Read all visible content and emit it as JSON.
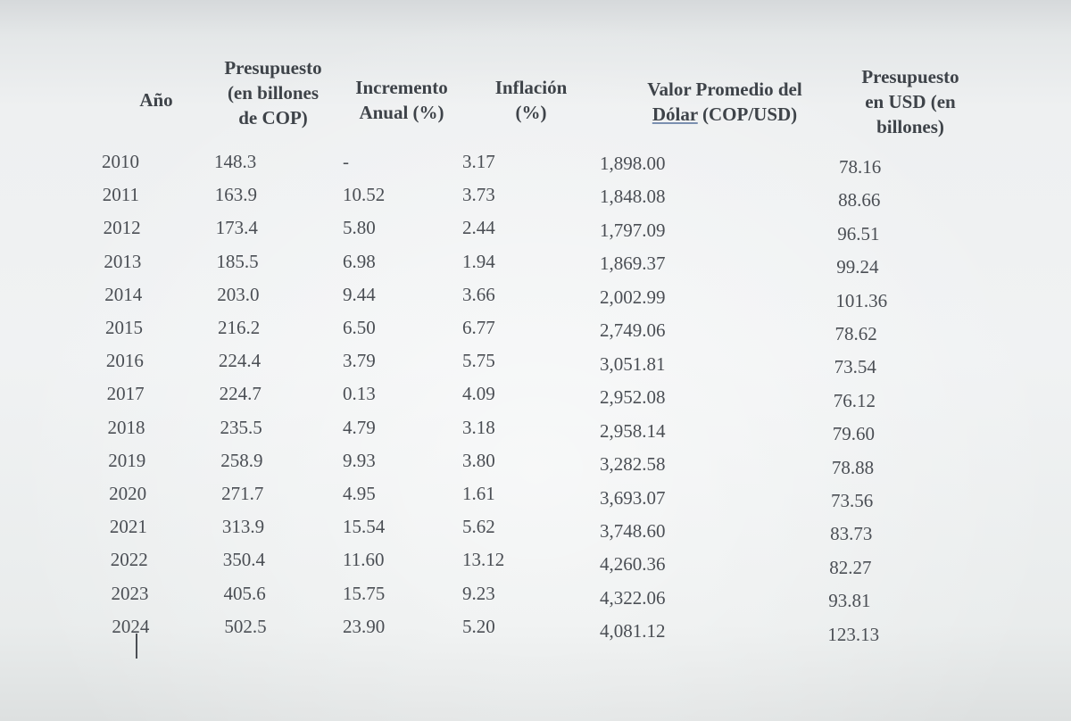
{
  "headers": {
    "year": "Año",
    "budget": "Presupuesto (en billones de COP)",
    "budget_lines": [
      "Presupuesto",
      "(en billones",
      "de COP)"
    ],
    "increase": "Incremento Anual (%)",
    "increase_lines": [
      "Incremento",
      "Anual (%)"
    ],
    "inflation": "Inflación (%)",
    "inflation_lines": [
      "Inflación",
      "(%)"
    ],
    "dollar": "Valor Promedio del Dólar (COP/USD)",
    "dollar_line1": "Valor Promedio del",
    "dollar_line2_a": "Dólar",
    "dollar_line2_b": " (COP/USD)",
    "usd": "Presupuesto en USD (en billones)",
    "usd_lines": [
      "Presupuesto",
      "en USD (en",
      "billones)"
    ]
  },
  "rows": [
    {
      "year": "2010",
      "budget": "148.3",
      "increase": "-",
      "inflation": "3.17",
      "dollar": "1,898.00",
      "usd": "78.16"
    },
    {
      "year": "2011",
      "budget": "163.9",
      "increase": "10.52",
      "inflation": "3.73",
      "dollar": "1,848.08",
      "usd": "88.66"
    },
    {
      "year": "2012",
      "budget": "173.4",
      "increase": "5.80",
      "inflation": "2.44",
      "dollar": "1,797.09",
      "usd": "96.51"
    },
    {
      "year": "2013",
      "budget": "185.5",
      "increase": "6.98",
      "inflation": "1.94",
      "dollar": "1,869.37",
      "usd": "99.24"
    },
    {
      "year": "2014",
      "budget": "203.0",
      "increase": "9.44",
      "inflation": "3.66",
      "dollar": "2,002.99",
      "usd": "101.36"
    },
    {
      "year": "2015",
      "budget": "216.2",
      "increase": "6.50",
      "inflation": "6.77",
      "dollar": "2,749.06",
      "usd": "78.62"
    },
    {
      "year": "2016",
      "budget": "224.4",
      "increase": "3.79",
      "inflation": "5.75",
      "dollar": "3,051.81",
      "usd": "73.54"
    },
    {
      "year": "2017",
      "budget": "224.7",
      "increase": "0.13",
      "inflation": "4.09",
      "dollar": "2,952.08",
      "usd": "76.12"
    },
    {
      "year": "2018",
      "budget": "235.5",
      "increase": "4.79",
      "inflation": "3.18",
      "dollar": "2,958.14",
      "usd": "79.60"
    },
    {
      "year": "2019",
      "budget": "258.9",
      "increase": "9.93",
      "inflation": "3.80",
      "dollar": "3,282.58",
      "usd": "78.88"
    },
    {
      "year": "2020",
      "budget": "271.7",
      "increase": "4.95",
      "inflation": "1.61",
      "dollar": "3,693.07",
      "usd": "73.56"
    },
    {
      "year": "2021",
      "budget": "313.9",
      "increase": "15.54",
      "inflation": "5.62",
      "dollar": "3,748.60",
      "usd": "83.73"
    },
    {
      "year": "2022",
      "budget": "350.4",
      "increase": "11.60",
      "inflation": "13.12",
      "dollar": "4,260.36",
      "usd": "82.27"
    },
    {
      "year": "2023",
      "budget": "405.6",
      "increase": "15.75",
      "inflation": "9.23",
      "dollar": "4,322.06",
      "usd": "93.81"
    },
    {
      "year": "2024",
      "budget": "502.5",
      "increase": "23.90",
      "inflation": "5.20",
      "dollar": "4,081.12",
      "usd": "123.13"
    }
  ]
}
